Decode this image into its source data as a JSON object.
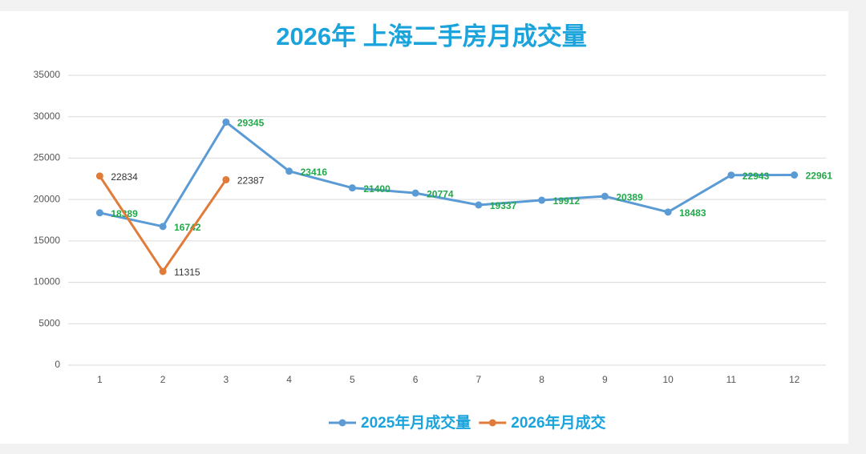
{
  "chart_data": {
    "type": "line",
    "title": "2026年 上海二手房月成交量",
    "categories": [
      1,
      2,
      3,
      4,
      5,
      6,
      7,
      8,
      9,
      10,
      11,
      12
    ],
    "series": [
      {
        "name": "2025年月成交量",
        "color": "#5b9bd5",
        "label_color": "#22a84a",
        "values": [
          18389,
          16742,
          29345,
          23416,
          21400,
          20774,
          19337,
          19912,
          20389,
          18483,
          22943,
          22961
        ]
      },
      {
        "name": "2026年月成交",
        "color": "#e07b39",
        "label_color": "#333333",
        "values": [
          22834,
          11315,
          22387,
          null,
          null,
          null,
          null,
          null,
          null,
          null,
          null,
          null
        ]
      }
    ],
    "ylim": [
      0,
      35000
    ],
    "yticks": [
      0,
      5000,
      10000,
      15000,
      20000,
      25000,
      30000,
      35000
    ],
    "grid": true,
    "legend": "bottom"
  }
}
